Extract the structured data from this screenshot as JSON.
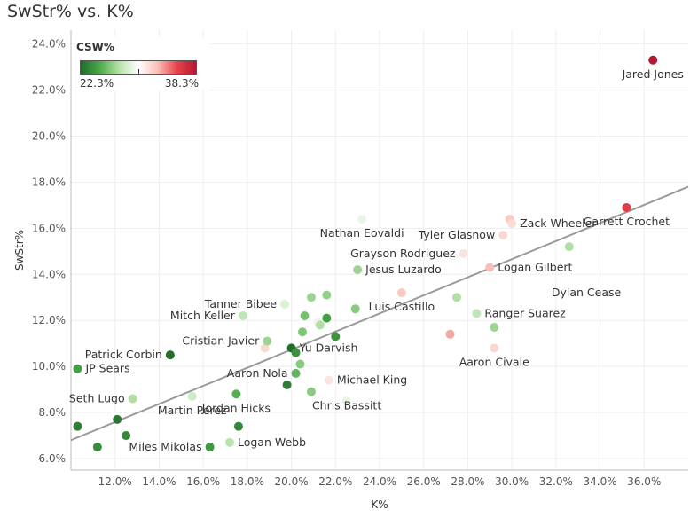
{
  "chart_data": {
    "type": "scatter",
    "title": "SwStr% vs. K%",
    "xlabel": "K%",
    "ylabel": "SwStr%",
    "xlim": [
      10.0,
      38.0
    ],
    "ylim": [
      5.5,
      24.6
    ],
    "x_ticks": [
      12,
      14,
      16,
      18,
      20,
      22,
      24,
      26,
      28,
      30,
      32,
      34,
      36
    ],
    "x_tick_labels": [
      "12.0%",
      "14.0%",
      "16.0%",
      "18.0%",
      "20.0%",
      "22.0%",
      "24.0%",
      "26.0%",
      "28.0%",
      "30.0%",
      "32.0%",
      "34.0%",
      "36.0%"
    ],
    "y_ticks": [
      6,
      8,
      10,
      12,
      14,
      16,
      18,
      20,
      22,
      24
    ],
    "y_tick_labels": [
      "6.0%",
      "8.0%",
      "10.0%",
      "12.0%",
      "14.0%",
      "16.0%",
      "18.0%",
      "20.0%",
      "22.0%",
      "24.0%"
    ],
    "grid": true,
    "trend_line": {
      "x": [
        10.0,
        38.0
      ],
      "y": [
        6.8,
        17.8
      ]
    },
    "color_legend": {
      "title": "CSW%",
      "min": 22.3,
      "max": 38.3,
      "min_label": "22.3%",
      "max_label": "38.3%",
      "colors": [
        "#1f6b2c",
        "#4ea94a",
        "#b5e2a8",
        "#ffffff",
        "#f8c0b8",
        "#e8434b",
        "#b21830"
      ],
      "position": "top-left"
    },
    "points": [
      {
        "x": 10.3,
        "y": 9.9,
        "c": 24.5,
        "label": "JP Sears",
        "lab_side": "right"
      },
      {
        "x": 10.3,
        "y": 7.4,
        "c": 23.2,
        "label": ""
      },
      {
        "x": 11.2,
        "y": 6.5,
        "c": 23.8,
        "label": ""
      },
      {
        "x": 12.1,
        "y": 7.7,
        "c": 22.8,
        "label": ""
      },
      {
        "x": 12.5,
        "y": 7.0,
        "c": 23.5,
        "label": ""
      },
      {
        "x": 12.8,
        "y": 8.6,
        "c": 27.5,
        "label": "Seth Lugo",
        "lab_side": "left"
      },
      {
        "x": 14.5,
        "y": 10.5,
        "c": 22.5,
        "label": "Patrick Corbin",
        "lab_side": "left"
      },
      {
        "x": 15.5,
        "y": 8.7,
        "c": 28.5,
        "label": "Martin Perez",
        "lab_side": "below"
      },
      {
        "x": 16.3,
        "y": 6.5,
        "c": 24.2,
        "label": "Miles Mikolas",
        "lab_side": "left"
      },
      {
        "x": 17.2,
        "y": 6.7,
        "c": 27.8,
        "label": "Logan Webb",
        "lab_side": "right"
      },
      {
        "x": 17.5,
        "y": 8.8,
        "c": 25.2,
        "label": "Jordan Hicks",
        "lab_side": "below"
      },
      {
        "x": 17.6,
        "y": 7.4,
        "c": 23.5,
        "label": ""
      },
      {
        "x": 17.8,
        "y": 12.2,
        "c": 28.0,
        "label": "Mitch Keller",
        "lab_side": "left"
      },
      {
        "x": 18.8,
        "y": 10.8,
        "c": 32.0,
        "label": ""
      },
      {
        "x": 18.9,
        "y": 11.1,
        "c": 27.0,
        "label": "Cristian Javier",
        "lab_side": "left"
      },
      {
        "x": 19.7,
        "y": 12.7,
        "c": 29.0,
        "label": "Tanner Bibee",
        "lab_side": "left"
      },
      {
        "x": 19.8,
        "y": 9.2,
        "c": 23.2,
        "label": ""
      },
      {
        "x": 20.0,
        "y": 10.8,
        "c": 22.4,
        "label": "Yu Darvish",
        "lab_side": "right"
      },
      {
        "x": 20.2,
        "y": 10.6,
        "c": 24.0,
        "label": ""
      },
      {
        "x": 20.2,
        "y": 9.7,
        "c": 25.5,
        "label": "Aaron Nola",
        "lab_side": "left"
      },
      {
        "x": 20.4,
        "y": 10.1,
        "c": 26.5,
        "label": ""
      },
      {
        "x": 20.5,
        "y": 11.5,
        "c": 26.3,
        "label": ""
      },
      {
        "x": 20.6,
        "y": 12.2,
        "c": 26.0,
        "label": ""
      },
      {
        "x": 20.9,
        "y": 8.9,
        "c": 26.5,
        "label": "Chris Bassitt",
        "lab_side": "belowright"
      },
      {
        "x": 20.9,
        "y": 13.0,
        "c": 27.0,
        "label": ""
      },
      {
        "x": 21.2,
        "y": 11.9,
        "c": 31.0,
        "label": ""
      },
      {
        "x": 21.3,
        "y": 11.8,
        "c": 27.5,
        "label": ""
      },
      {
        "x": 21.6,
        "y": 13.1,
        "c": 26.8,
        "label": ""
      },
      {
        "x": 21.6,
        "y": 12.1,
        "c": 24.5,
        "label": ""
      },
      {
        "x": 21.7,
        "y": 9.4,
        "c": 31.5,
        "label": "Michael King",
        "lab_side": "right"
      },
      {
        "x": 22.0,
        "y": 11.3,
        "c": 24.0,
        "label": ""
      },
      {
        "x": 22.5,
        "y": 8.5,
        "c": 29.5,
        "label": ""
      },
      {
        "x": 22.9,
        "y": 12.5,
        "c": 26.5,
        "label": ""
      },
      {
        "x": 23.0,
        "y": 14.2,
        "c": 27.0,
        "label": "Jesus Luzardo",
        "lab_side": "right"
      },
      {
        "x": 23.2,
        "y": 16.4,
        "c": 29.5,
        "label": "Nathan Eovaldi",
        "lab_side": "below"
      },
      {
        "x": 25.0,
        "y": 13.2,
        "c": 32.5,
        "label": "Luis Castillo",
        "lab_side": "below"
      },
      {
        "x": 27.2,
        "y": 11.4,
        "c": 33.5,
        "label": ""
      },
      {
        "x": 27.5,
        "y": 13.0,
        "c": 27.5,
        "label": ""
      },
      {
        "x": 27.8,
        "y": 14.9,
        "c": 31.5,
        "label": "Grayson Rodriguez",
        "lab_side": "left"
      },
      {
        "x": 28.4,
        "y": 12.3,
        "c": 28.0,
        "label": "Ranger Suarez",
        "lab_side": "right"
      },
      {
        "x": 29.0,
        "y": 14.3,
        "c": 33.0,
        "label": "Logan Gilbert",
        "lab_side": "right"
      },
      {
        "x": 29.2,
        "y": 11.7,
        "c": 27.0,
        "label": ""
      },
      {
        "x": 29.2,
        "y": 10.8,
        "c": 32.0,
        "label": "Aaron Civale",
        "lab_side": "below"
      },
      {
        "x": 29.6,
        "y": 15.7,
        "c": 32.0,
        "label": "Tyler Glasnow",
        "lab_side": "left"
      },
      {
        "x": 29.9,
        "y": 16.4,
        "c": 32.5,
        "label": ""
      },
      {
        "x": 30.0,
        "y": 16.2,
        "c": 31.8,
        "label": "Zack Wheeler",
        "lab_side": "right"
      },
      {
        "x": 32.6,
        "y": 15.2,
        "c": 27.5,
        "label": ""
      },
      {
        "x": 35.2,
        "y": 16.9,
        "c": 36.0,
        "label": "Garrett Crochet",
        "lab_side": "belowcenter"
      },
      {
        "x": 36.4,
        "y": 23.3,
        "c": 38.3,
        "label": "Jared Jones",
        "lab_side": "below"
      }
    ],
    "annotations": [
      {
        "text": "Dylan Cease",
        "x": 31.8,
        "y": 13.2
      }
    ]
  }
}
